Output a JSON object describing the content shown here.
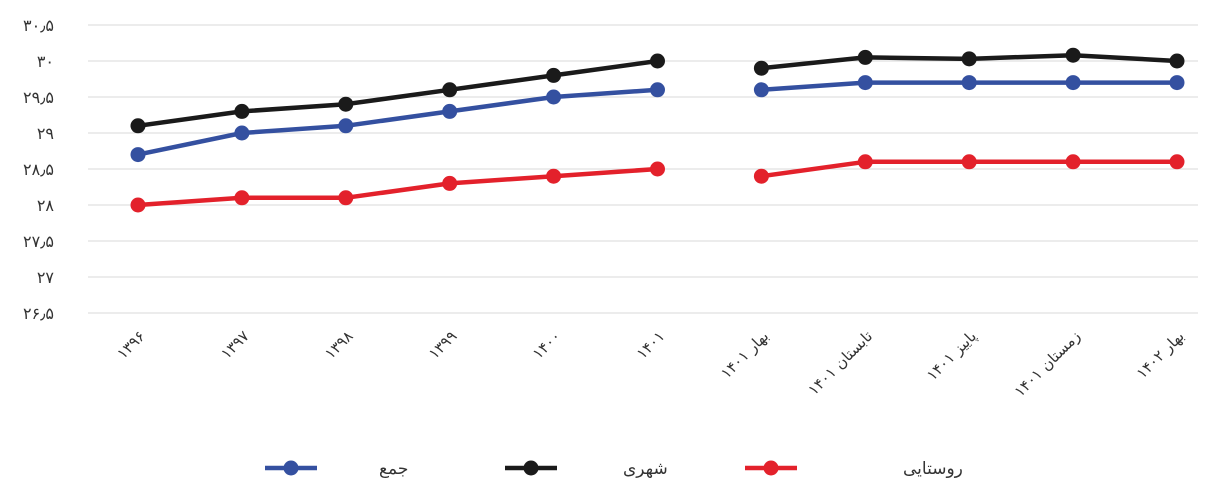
{
  "chart_data": {
    "type": "line",
    "title": "",
    "xlabel": "",
    "ylabel": "",
    "categories": [
      "۱۳۹۶",
      "۱۳۹۷",
      "۱۳۹۸",
      "۱۳۹۹",
      "۱۴۰۰",
      "۱۴۰۱",
      "بهار ۱۴۰۱",
      "تابستان ۱۴۰۱",
      "پاییز ۱۴۰۱",
      "زمستان ۱۴۰۱",
      "بهار ۱۴۰۲"
    ],
    "ylim": [
      26.5,
      30.5
    ],
    "yticks": [
      26.5,
      27,
      27.5,
      28,
      28.5,
      29,
      29.5,
      30,
      30.5
    ],
    "ytick_labels": [
      "۲۶٫۵",
      "۲۷",
      "۲۷٫۵",
      "۲۸",
      "۲۸٫۵",
      "۲۹",
      "۲۹٫۵",
      "۳۰",
      "۳۰٫۵"
    ],
    "grid": true,
    "gap_after_index": 5,
    "legend_position": "bottom",
    "series": [
      {
        "name": "جمع",
        "color": "#3450a0",
        "values": [
          28.7,
          29.0,
          29.1,
          29.3,
          29.5,
          29.6,
          29.6,
          29.7,
          29.7,
          29.7,
          29.7
        ]
      },
      {
        "name": "شهری",
        "color": "#1a1a1a",
        "values": [
          29.1,
          29.3,
          29.4,
          29.6,
          29.8,
          30.0,
          29.9,
          30.05,
          30.03,
          30.08,
          30.0
        ]
      },
      {
        "name": "روستایی",
        "color": "#e3212b",
        "values": [
          28.0,
          28.1,
          28.1,
          28.3,
          28.4,
          28.5,
          28.4,
          28.6,
          28.6,
          28.6,
          28.6
        ]
      }
    ]
  }
}
